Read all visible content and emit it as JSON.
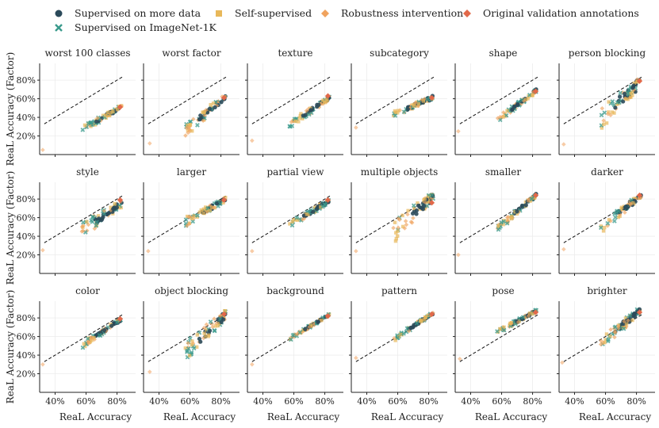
{
  "legend": {
    "entries": [
      {
        "key": "supervised_more",
        "label": "Supervised on more data",
        "marker": "circle",
        "color": "#2b4a5a"
      },
      {
        "key": "supervised_in1k",
        "label": "Supervised on ImageNet-1K",
        "marker": "cross",
        "color": "#3a9a8c"
      },
      {
        "key": "self_supervised",
        "label": "Self-supervised",
        "marker": "square",
        "color": "#e8b85a"
      },
      {
        "key": "robustness",
        "label": "Robustness intervention",
        "marker": "diamond",
        "color": "#f0a35e"
      },
      {
        "key": "original",
        "label": "Original validation annotations",
        "marker": "diamond",
        "color": "#e2694a"
      }
    ]
  },
  "chart_data": {
    "type": "scatter",
    "shared": {
      "xlabel": "ReaL Accuracy",
      "ylabel": "ReaL Accuracy (Factor)",
      "xlim": [
        30,
        92
      ],
      "ylim": [
        0,
        98
      ],
      "xticks": [
        40,
        60,
        80
      ],
      "xtick_labels": [
        "40%",
        "60%",
        "80%"
      ],
      "yticks": [
        20,
        40,
        60,
        80
      ],
      "ytick_labels": [
        "20%",
        "40%",
        "60%",
        "80%"
      ],
      "diagonal": "dashed y = x reference",
      "grid": true
    },
    "panels": [
      {
        "title": "worst 100 classes",
        "slope": 0.98,
        "intercept": -29.5,
        "spread": 3,
        "outlier": [
          32,
          5
        ],
        "original": [
          82,
          51
        ]
      },
      {
        "title": "worst factor",
        "slope": 1.35,
        "intercept": -50.5,
        "spread": 6,
        "outlier": [
          34,
          12
        ],
        "original": [
          82,
          61
        ]
      },
      {
        "title": "texture",
        "slope": 1.12,
        "intercept": -32,
        "spread": 3.5,
        "outlier": [
          33,
          15
        ],
        "original": [
          82,
          63
        ]
      },
      {
        "title": "subcategory",
        "slope": 0.72,
        "intercept": 2,
        "spread": 3,
        "outlier": [
          33,
          29
        ],
        "original": [
          82,
          61
        ]
      },
      {
        "title": "shape",
        "slope": 1.22,
        "intercept": -32,
        "spread": 3,
        "outlier": [
          32,
          25
        ],
        "original": [
          82,
          68
        ]
      },
      {
        "title": "person blocking",
        "slope": 1.55,
        "intercept": -50,
        "spread": 9,
        "outlier": [
          33,
          11
        ],
        "original": [
          82,
          79
        ]
      },
      {
        "title": "style",
        "slope": 1.15,
        "intercept": -20,
        "spread": 7,
        "outlier": [
          32,
          25
        ],
        "original": [
          82,
          79
        ]
      },
      {
        "title": "larger",
        "slope": 0.95,
        "intercept": 1,
        "spread": 4,
        "outlier": [
          33,
          24
        ],
        "original": [
          82,
          79
        ]
      },
      {
        "title": "partial view",
        "slope": 1.0,
        "intercept": -5,
        "spread": 3,
        "outlier": [
          33,
          24
        ],
        "original": [
          82,
          79
        ]
      },
      {
        "title": "multiple objects",
        "slope": 1.6,
        "intercept": -48,
        "spread": 9,
        "outlier": [
          33,
          24
        ],
        "original": [
          82,
          76
        ]
      },
      {
        "title": "smaller",
        "slope": 1.45,
        "intercept": -35,
        "spread": 3,
        "outlier": [
          32,
          20
        ],
        "original": [
          82,
          84
        ]
      },
      {
        "title": "darker",
        "slope": 1.35,
        "intercept": -28,
        "spread": 5,
        "outlier": [
          33,
          26
        ],
        "original": [
          82,
          84
        ]
      },
      {
        "title": "color",
        "slope": 1.15,
        "intercept": -16,
        "spread": 3,
        "outlier": [
          32,
          30
        ],
        "original": [
          82,
          79
        ]
      },
      {
        "title": "object blocking",
        "slope": 1.55,
        "intercept": -45,
        "spread": 9,
        "outlier": [
          34,
          22
        ],
        "original": [
          82,
          84
        ]
      },
      {
        "title": "background",
        "slope": 1.02,
        "intercept": -1,
        "spread": 1.5,
        "outlier": [
          33,
          30
        ],
        "original": [
          82,
          82
        ]
      },
      {
        "title": "pattern",
        "slope": 1.1,
        "intercept": -6,
        "spread": 2,
        "outlier": [
          33,
          37
        ],
        "original": [
          82,
          84
        ]
      },
      {
        "title": "pose",
        "slope": 0.92,
        "intercept": 12,
        "spread": 2,
        "outlier": [
          33,
          36
        ],
        "original": [
          82,
          86
        ]
      },
      {
        "title": "brighter",
        "slope": 1.45,
        "intercept": -31,
        "spread": 6,
        "outlier": [
          32,
          32
        ],
        "original": [
          82,
          86
        ]
      }
    ]
  }
}
